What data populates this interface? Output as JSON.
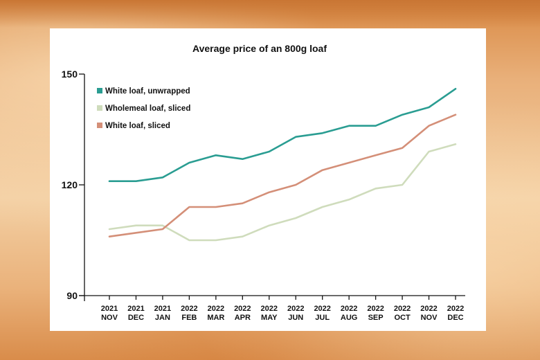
{
  "chart_data": {
    "type": "line",
    "title": "Average price of an 800g loaf",
    "xlabel": "",
    "ylabel": "",
    "ylim": [
      90,
      150
    ],
    "yticks": [
      90,
      120,
      150
    ],
    "grid": false,
    "legend_position": "top-left",
    "categories": [
      {
        "year": "2021",
        "month": "NOV"
      },
      {
        "year": "2021",
        "month": "DEC"
      },
      {
        "year": "2021",
        "month": "JAN"
      },
      {
        "year": "2022",
        "month": "FEB"
      },
      {
        "year": "2022",
        "month": "MAR"
      },
      {
        "year": "2022",
        "month": "APR"
      },
      {
        "year": "2022",
        "month": "MAY"
      },
      {
        "year": "2022",
        "month": "JUN"
      },
      {
        "year": "2022",
        "month": "JUL"
      },
      {
        "year": "2022",
        "month": "AUG"
      },
      {
        "year": "2022",
        "month": "SEP"
      },
      {
        "year": "2022",
        "month": "OCT"
      },
      {
        "year": "2022",
        "month": "NOV"
      },
      {
        "year": "2022",
        "month": "DEC"
      }
    ],
    "series": [
      {
        "name": "White loaf, unwrapped",
        "color": "#2a9d92",
        "values": [
          121,
          121,
          122,
          126,
          128,
          127,
          129,
          133,
          134,
          136,
          136,
          139,
          141,
          146
        ]
      },
      {
        "name": "Wholemeal loaf, sliced",
        "color": "#cfdcbc",
        "values": [
          108,
          109,
          109,
          105,
          105,
          106,
          109,
          111,
          114,
          116,
          119,
          120,
          129,
          131
        ]
      },
      {
        "name": "White loaf, sliced",
        "color": "#d48f78",
        "values": [
          106,
          107,
          108,
          114,
          114,
          115,
          118,
          120,
          124,
          126,
          128,
          130,
          136,
          139
        ]
      }
    ]
  }
}
